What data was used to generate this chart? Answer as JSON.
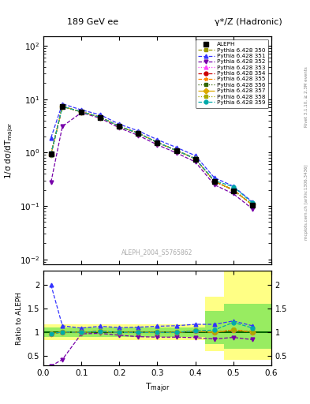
{
  "title_left": "189 GeV ee",
  "title_right": "γ*/Z (Hadronic)",
  "ylabel_main": "1/σ dσ/dT_major",
  "ylabel_ratio": "Ratio to ALEPH",
  "xlabel": "T_major",
  "watermark": "ALEPH_2004_S5765862",
  "right_label_top": "Rivet 3.1.10, ≥ 2.3M events",
  "right_label_bottom": "mcplots.cern.ch [arXiv:1306.3436]",
  "x_aleph": [
    0.02,
    0.05,
    0.1,
    0.15,
    0.2,
    0.25,
    0.3,
    0.35,
    0.4,
    0.45,
    0.5,
    0.55
  ],
  "y_aleph": [
    0.95,
    7.2,
    5.8,
    4.5,
    3.1,
    2.3,
    1.55,
    1.1,
    0.75,
    0.29,
    0.19,
    0.105
  ],
  "x_mc": [
    0.02,
    0.05,
    0.1,
    0.15,
    0.2,
    0.25,
    0.3,
    0.35,
    0.4,
    0.45,
    0.5,
    0.55
  ],
  "y_350": [
    0.93,
    7.3,
    5.8,
    4.6,
    3.1,
    2.3,
    1.55,
    1.1,
    0.77,
    0.29,
    0.2,
    0.106
  ],
  "y_351": [
    1.9,
    8.2,
    6.3,
    5.1,
    3.4,
    2.55,
    1.75,
    1.25,
    0.88,
    0.34,
    0.235,
    0.12
  ],
  "y_352": [
    0.28,
    3.1,
    5.6,
    4.4,
    2.9,
    2.1,
    1.4,
    0.99,
    0.67,
    0.25,
    0.17,
    0.089
  ],
  "y_353": [
    0.93,
    7.3,
    5.8,
    4.6,
    3.1,
    2.3,
    1.55,
    1.1,
    0.77,
    0.29,
    0.2,
    0.106
  ],
  "y_354": [
    0.93,
    7.3,
    5.8,
    4.6,
    3.1,
    2.3,
    1.55,
    1.1,
    0.77,
    0.29,
    0.2,
    0.106
  ],
  "y_355": [
    0.93,
    7.3,
    5.8,
    4.6,
    3.1,
    2.3,
    1.55,
    1.1,
    0.77,
    0.29,
    0.2,
    0.106
  ],
  "y_356": [
    0.93,
    7.3,
    5.8,
    4.6,
    3.1,
    2.3,
    1.55,
    1.1,
    0.77,
    0.29,
    0.2,
    0.106
  ],
  "y_357": [
    0.93,
    7.3,
    5.8,
    4.6,
    3.1,
    2.3,
    1.55,
    1.1,
    0.77,
    0.29,
    0.2,
    0.106
  ],
  "y_358": [
    0.93,
    7.3,
    5.8,
    4.6,
    3.1,
    2.3,
    1.55,
    1.1,
    0.77,
    0.29,
    0.2,
    0.106
  ],
  "y_359": [
    0.93,
    7.3,
    5.8,
    4.6,
    3.1,
    2.3,
    1.55,
    1.1,
    0.77,
    0.3,
    0.23,
    0.115
  ],
  "ratio_x": [
    0.02,
    0.05,
    0.1,
    0.15,
    0.2,
    0.25,
    0.3,
    0.35,
    0.4,
    0.45,
    0.5,
    0.55
  ],
  "ratio_350": [
    0.97,
    1.01,
    1.0,
    1.02,
    1.0,
    1.0,
    1.0,
    1.0,
    1.03,
    1.0,
    1.05,
    1.01
  ],
  "ratio_351": [
    2.0,
    1.14,
    1.09,
    1.13,
    1.1,
    1.11,
    1.13,
    1.14,
    1.17,
    1.17,
    1.24,
    1.14
  ],
  "ratio_352": [
    0.29,
    0.43,
    0.97,
    0.98,
    0.94,
    0.91,
    0.9,
    0.9,
    0.89,
    0.86,
    0.895,
    0.848
  ],
  "ratio_353": [
    0.97,
    1.01,
    1.0,
    1.02,
    1.0,
    1.0,
    1.0,
    1.0,
    1.03,
    1.0,
    1.05,
    1.01
  ],
  "ratio_354": [
    0.97,
    1.01,
    1.0,
    1.02,
    1.0,
    1.0,
    1.0,
    1.0,
    1.03,
    1.0,
    1.05,
    1.01
  ],
  "ratio_355": [
    0.97,
    1.01,
    1.0,
    1.02,
    1.0,
    1.0,
    1.0,
    1.0,
    1.03,
    1.0,
    1.05,
    1.01
  ],
  "ratio_356": [
    0.97,
    1.01,
    1.0,
    1.02,
    1.0,
    1.0,
    1.0,
    1.0,
    1.03,
    1.0,
    1.05,
    1.01
  ],
  "ratio_357": [
    0.97,
    1.01,
    1.0,
    1.02,
    1.0,
    1.0,
    1.0,
    1.0,
    1.03,
    1.0,
    1.05,
    1.01
  ],
  "ratio_358": [
    0.97,
    1.01,
    1.0,
    1.02,
    1.0,
    1.0,
    1.0,
    1.0,
    1.03,
    1.0,
    1.05,
    1.01
  ],
  "ratio_359": [
    0.97,
    1.01,
    1.0,
    1.02,
    1.0,
    1.0,
    1.0,
    1.0,
    1.03,
    1.05,
    1.21,
    1.095
  ],
  "color_350": "#999900",
  "color_351": "#3333ff",
  "color_352": "#7700aa",
  "color_353": "#ff44ff",
  "color_354": "#cc0000",
  "color_355": "#ff8800",
  "color_356": "#336600",
  "color_357": "#ddaa00",
  "color_358": "#aaaa00",
  "color_359": "#00aaaa",
  "xlim": [
    0.0,
    0.6
  ],
  "ylim_main": [
    0.008,
    150
  ],
  "ylim_ratio": [
    0.3,
    2.3
  ]
}
